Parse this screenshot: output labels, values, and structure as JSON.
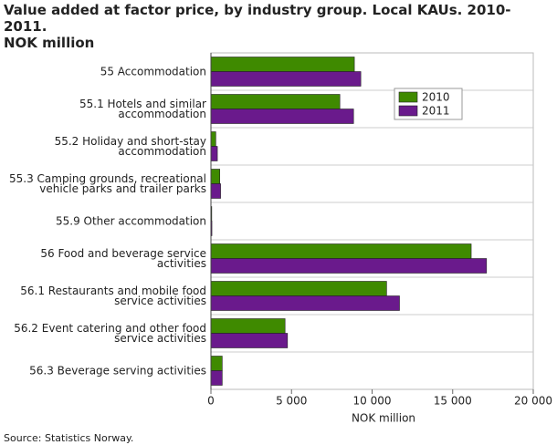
{
  "chart_data": {
    "type": "hbar",
    "title": "Value added at factor price, by industry group. Local KAUs. 2010-2011.\nNOK million",
    "categories": [
      "55 Accommodation",
      "55.1 Hotels and similar\naccommodation",
      "55.2 Holiday and short-stay\naccommodation",
      "55.3 Camping grounds, recreational\nvehicle parks and trailer parks",
      "55.9 Other accommodation",
      "56 Food and beverage service\nactivities",
      "56.1 Restaurants and mobile food\nservice activities",
      "56.2 Event catering and other food\nservice activities",
      "56.3 Beverage serving activities"
    ],
    "series": [
      {
        "name": "2010",
        "color": "#3f8a00",
        "values": [
          8900,
          8000,
          300,
          550,
          50,
          16150,
          10900,
          4600,
          700
        ]
      },
      {
        "name": "2011",
        "color": "#6a1a8c",
        "values": [
          9300,
          8850,
          400,
          600,
          60,
          17100,
          11700,
          4750,
          700
        ]
      }
    ],
    "xlim": [
      0,
      20000
    ],
    "xticks": [
      0,
      {
        "value": 5000,
        "label": "5 000"
      },
      {
        "value": 10000,
        "label": "10 000"
      },
      {
        "value": 15000,
        "label": "15 000"
      },
      {
        "value": 20000,
        "label": "20 000"
      }
    ],
    "xlabel": "NOK million",
    "source": "Source: Statistics Norway.",
    "legend": "upper right"
  }
}
